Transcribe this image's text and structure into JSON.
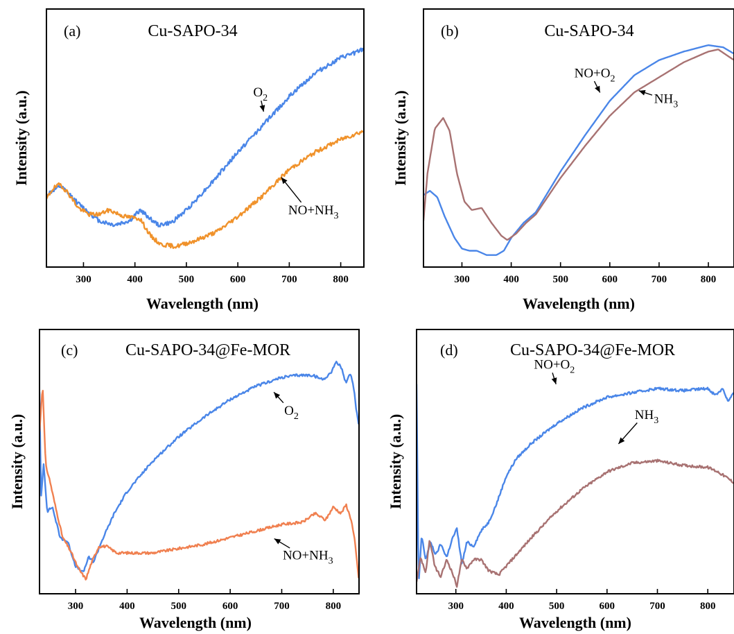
{
  "colors": {
    "blue": "#4a86e8",
    "orange": "#f0922b",
    "salmon": "#f08050",
    "brown": "#a87272",
    "axis": "#000000"
  },
  "chart_data": [
    {
      "id": "a",
      "type": "line",
      "panel_label": "(a)",
      "title": "Cu-SAPO-34",
      "xlabel": "Wavelength (nm)",
      "ylabel": "Intensity (a.u.)",
      "xlim": [
        228,
        845
      ],
      "ylim": [
        0,
        1
      ],
      "xticks": [
        300,
        400,
        500,
        600,
        700,
        800
      ],
      "yticks": [],
      "noise": 0.01,
      "seed": 11,
      "series": [
        {
          "name": "O2",
          "color": "#4a86e8",
          "x": [
            228,
            240,
            255,
            270,
            290,
            310,
            330,
            360,
            390,
            410,
            425,
            445,
            470,
            500,
            550,
            600,
            650,
            700,
            750,
            800,
            845
          ],
          "y": [
            0.3,
            0.32,
            0.34,
            0.31,
            0.26,
            0.22,
            0.18,
            0.16,
            0.18,
            0.23,
            0.2,
            0.16,
            0.17,
            0.23,
            0.36,
            0.5,
            0.63,
            0.76,
            0.87,
            0.94,
            0.98
          ]
        },
        {
          "name": "NO+NH3",
          "color": "#f0922b",
          "x": [
            228,
            240,
            255,
            270,
            290,
            310,
            330,
            350,
            380,
            410,
            430,
            450,
            480,
            520,
            560,
            600,
            650,
            700,
            750,
            800,
            845
          ],
          "y": [
            0.28,
            0.33,
            0.35,
            0.31,
            0.24,
            0.21,
            0.21,
            0.23,
            0.2,
            0.19,
            0.11,
            0.07,
            0.06,
            0.09,
            0.13,
            0.2,
            0.3,
            0.42,
            0.5,
            0.56,
            0.6
          ]
        }
      ],
      "annotations": [
        {
          "base": "O",
          "sub": "2",
          "x": 630,
          "y": 0.76,
          "ax": 651,
          "ay": 0.68
        },
        {
          "base": "NO+NH",
          "sub": "3",
          "x": 698,
          "y": 0.21,
          "ax": 682,
          "ay": 0.39
        }
      ]
    },
    {
      "id": "b",
      "type": "line",
      "panel_label": "(b)",
      "title": "Cu-SAPO-34",
      "xlabel": "Wavelength (nm)",
      "ylabel": "Intensity (a.u.)",
      "xlim": [
        222,
        852
      ],
      "ylim": [
        0,
        1
      ],
      "xticks": [
        300,
        400,
        500,
        600,
        700,
        800
      ],
      "yticks": [],
      "noise": 0.0,
      "seed": 0,
      "series": [
        {
          "name": "NO+O2",
          "color": "#4a86e8",
          "x": [
            222,
            235,
            250,
            265,
            285,
            300,
            315,
            330,
            350,
            370,
            385,
            400,
            425,
            450,
            500,
            550,
            600,
            650,
            700,
            750,
            800,
            830,
            852
          ],
          "y": [
            0.3,
            0.32,
            0.29,
            0.2,
            0.1,
            0.05,
            0.04,
            0.04,
            0.02,
            0.02,
            0.04,
            0.1,
            0.17,
            0.22,
            0.41,
            0.58,
            0.74,
            0.86,
            0.93,
            0.97,
            1.0,
            0.99,
            0.96
          ]
        },
        {
          "name": "NH3",
          "color": "#a87272",
          "x": [
            222,
            230,
            245,
            262,
            275,
            290,
            305,
            320,
            340,
            360,
            380,
            392,
            410,
            430,
            450,
            500,
            550,
            600,
            650,
            700,
            750,
            800,
            820,
            852
          ],
          "y": [
            0.18,
            0.4,
            0.61,
            0.66,
            0.6,
            0.4,
            0.27,
            0.23,
            0.24,
            0.17,
            0.11,
            0.09,
            0.12,
            0.17,
            0.21,
            0.38,
            0.53,
            0.67,
            0.78,
            0.85,
            0.92,
            0.97,
            0.98,
            0.93
          ]
        }
      ],
      "annotations": [
        {
          "base": "NO+O",
          "sub": "2",
          "x": 528,
          "y": 0.85,
          "ax": 582,
          "ay": 0.77
        },
        {
          "base": "NH",
          "sub": "3",
          "x": 690,
          "y": 0.73,
          "ax": 655,
          "ay": 0.79
        }
      ]
    },
    {
      "id": "c",
      "type": "line",
      "panel_label": "(c)",
      "title": "Cu-SAPO-34@Fe-MOR",
      "xlabel": "Wavelength (nm)",
      "ylabel": "Intensity (a.u.)",
      "xlim": [
        230,
        850
      ],
      "ylim": [
        0,
        1
      ],
      "xticks": [
        300,
        400,
        500,
        600,
        700,
        800
      ],
      "yticks": [],
      "noise": 0.006,
      "seed": 23,
      "series": [
        {
          "name": "O2",
          "color": "#4a86e8",
          "x": [
            230,
            233,
            238,
            245,
            255,
            270,
            285,
            300,
            315,
            325,
            335,
            350,
            375,
            400,
            450,
            500,
            550,
            600,
            650,
            700,
            730,
            760,
            780,
            795,
            805,
            815,
            825,
            833,
            840,
            845,
            850
          ],
          "y": [
            0.88,
            0.4,
            0.56,
            0.34,
            0.36,
            0.22,
            0.2,
            0.09,
            0.06,
            0.13,
            0.11,
            0.2,
            0.33,
            0.43,
            0.57,
            0.68,
            0.77,
            0.85,
            0.91,
            0.95,
            0.96,
            0.96,
            0.94,
            0.97,
            1.02,
            1.0,
            0.92,
            0.97,
            0.9,
            0.8,
            0.73
          ]
        },
        {
          "name": "NO+NH3",
          "color": "#f08050",
          "x": [
            230,
            236,
            242,
            250,
            262,
            275,
            290,
            305,
            320,
            330,
            345,
            360,
            380,
            400,
            450,
            500,
            550,
            600,
            650,
            700,
            740,
            765,
            785,
            800,
            815,
            825,
            835,
            842,
            850
          ],
          "y": [
            0.7,
            0.92,
            0.55,
            0.48,
            0.35,
            0.22,
            0.16,
            0.08,
            0.03,
            0.1,
            0.18,
            0.18,
            0.15,
            0.15,
            0.15,
            0.17,
            0.19,
            0.22,
            0.25,
            0.28,
            0.29,
            0.33,
            0.3,
            0.36,
            0.33,
            0.37,
            0.3,
            0.2,
            0.02
          ]
        }
      ],
      "annotations": [
        {
          "base": "O",
          "sub": "2",
          "x": 705,
          "y": 0.78,
          "ax": 682,
          "ay": 0.89
        },
        {
          "base": "NO+NH",
          "sub": "3",
          "x": 702,
          "y": 0.12,
          "ax": 682,
          "ay": 0.22
        }
      ]
    },
    {
      "id": "d",
      "type": "line",
      "panel_label": "(d)",
      "title": "Cu-SAPO-34@Fe-MOR",
      "xlabel": "Wavelength (nm)",
      "ylabel": "Intensity (a.u.)",
      "xlim": [
        222,
        852
      ],
      "ylim": [
        0,
        1
      ],
      "xticks": [
        300,
        400,
        500,
        600,
        700,
        800
      ],
      "yticks": [],
      "noise": 0.006,
      "seed": 37,
      "series": [
        {
          "name": "NO+O2",
          "color": "#4a86e8",
          "x": [
            222,
            226,
            232,
            240,
            250,
            260,
            270,
            282,
            292,
            302,
            312,
            322,
            335,
            350,
            365,
            380,
            400,
            420,
            450,
            500,
            550,
            600,
            650,
            700,
            750,
            800,
            815,
            830,
            840,
            852
          ],
          "y": [
            0.92,
            0.0,
            0.23,
            0.12,
            0.2,
            0.14,
            0.19,
            0.13,
            0.21,
            0.26,
            0.1,
            0.2,
            0.18,
            0.25,
            0.29,
            0.37,
            0.5,
            0.58,
            0.65,
            0.74,
            0.81,
            0.86,
            0.88,
            0.9,
            0.89,
            0.9,
            0.87,
            0.9,
            0.84,
            0.88
          ]
        },
        {
          "name": "NH3",
          "color": "#a87272",
          "x": [
            222,
            230,
            240,
            248,
            258,
            270,
            282,
            293,
            302,
            312,
            322,
            335,
            350,
            365,
            385,
            400,
            450,
            500,
            550,
            600,
            650,
            700,
            750,
            800,
            820,
            840,
            852
          ],
          "y": [
            0.02,
            0.13,
            0.06,
            0.21,
            0.09,
            0.04,
            0.12,
            0.06,
            0.0,
            0.12,
            0.08,
            0.12,
            0.12,
            0.07,
            0.05,
            0.09,
            0.22,
            0.34,
            0.44,
            0.52,
            0.56,
            0.57,
            0.55,
            0.54,
            0.52,
            0.49,
            0.47
          ]
        }
      ],
      "annotations": [
        {
          "base": "NO+O",
          "sub": "2",
          "x": 455,
          "y": 0.99,
          "ax": 500,
          "ay": 0.91
        },
        {
          "base": "NH",
          "sub": "3",
          "x": 655,
          "y": 0.76,
          "ax": 620,
          "ay": 0.64
        }
      ]
    }
  ]
}
